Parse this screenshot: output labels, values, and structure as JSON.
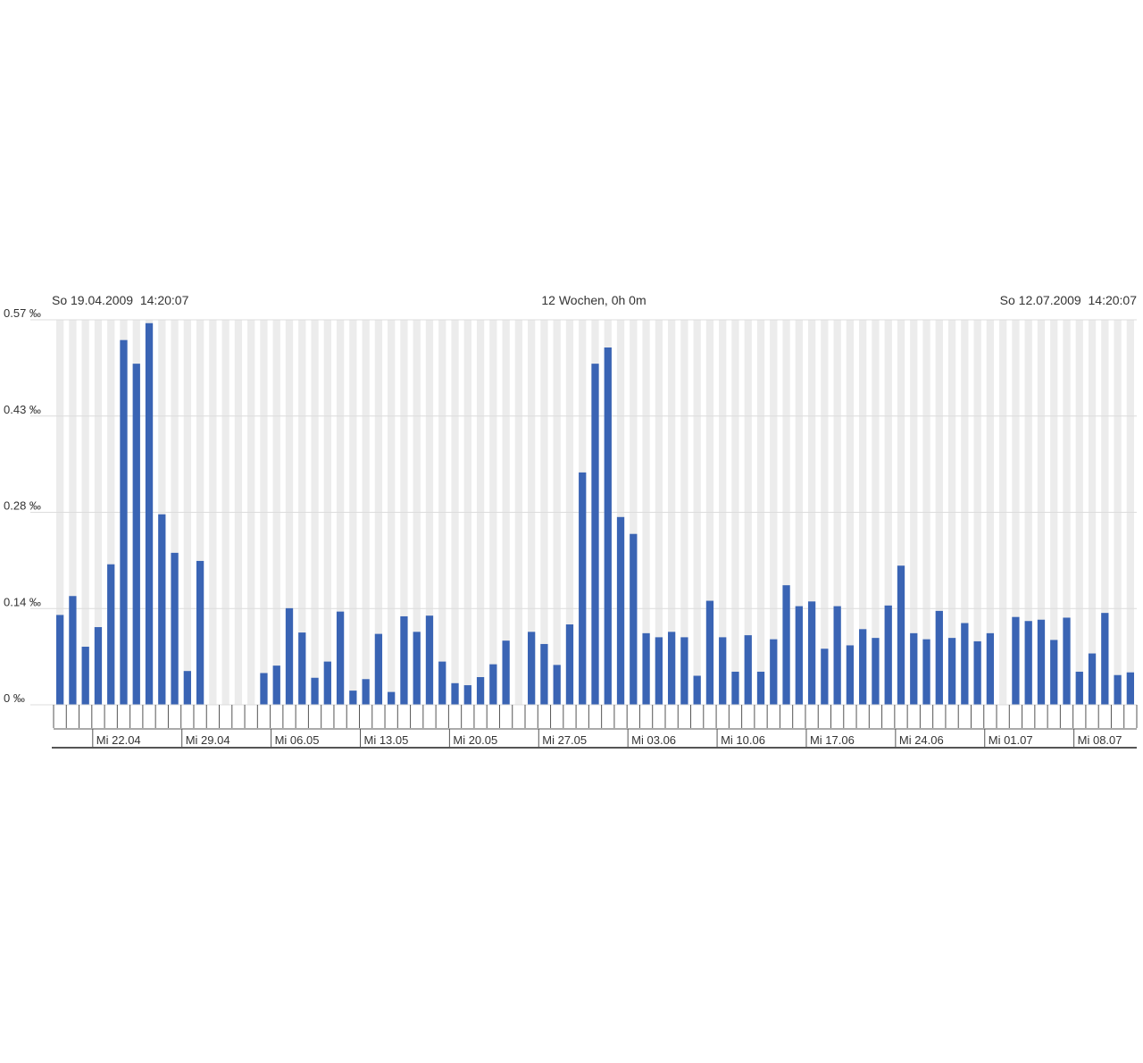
{
  "header": {
    "start": "So 19.04.2009  14:20:07",
    "range": "12 Wochen, 0h 0m",
    "end": "So 12.07.2009  14:20:07"
  },
  "colors": {
    "bar": "#3a64b4",
    "stripe": "#ececec",
    "gridline": "#dcdcdc",
    "axis": "#555555",
    "text": "#333333"
  },
  "chart_data": {
    "type": "bar",
    "y_unit": "‰",
    "ylim": [
      0,
      0.57
    ],
    "y_ticks": [
      {
        "value": 0,
        "label": "0 ‰"
      },
      {
        "value": 0.1425,
        "label": "0.14 ‰"
      },
      {
        "value": 0.285,
        "label": "0.28 ‰"
      },
      {
        "value": 0.4275,
        "label": "0.43 ‰"
      },
      {
        "value": 0.57,
        "label": "0.57 ‰"
      }
    ],
    "x_start": "2009-04-19",
    "x_end": "2009-07-12",
    "x_ticks": [
      {
        "date": "2009-04-22",
        "label": "Mi 22.04"
      },
      {
        "date": "2009-04-29",
        "label": "Mi 29.04"
      },
      {
        "date": "2009-05-06",
        "label": "Mi 06.05"
      },
      {
        "date": "2009-05-13",
        "label": "Mi 13.05"
      },
      {
        "date": "2009-05-20",
        "label": "Mi 20.05"
      },
      {
        "date": "2009-05-27",
        "label": "Mi 27.05"
      },
      {
        "date": "2009-06-03",
        "label": "Mi 03.06"
      },
      {
        "date": "2009-06-10",
        "label": "Mi 10.06"
      },
      {
        "date": "2009-06-17",
        "label": "Mi 17.06"
      },
      {
        "date": "2009-06-24",
        "label": "Mi 24.06"
      },
      {
        "date": "2009-07-01",
        "label": "Mi 01.07"
      },
      {
        "date": "2009-07-08",
        "label": "Mi 08.07"
      }
    ],
    "series": [
      {
        "x": [
          "2009-04-19",
          "2009-04-20",
          "2009-04-21",
          "2009-04-22",
          "2009-04-23",
          "2009-04-24",
          "2009-04-25",
          "2009-04-26",
          "2009-04-27",
          "2009-04-28",
          "2009-04-29",
          "2009-04-30",
          "2009-05-01",
          "2009-05-02",
          "2009-05-03",
          "2009-05-04",
          "2009-05-05",
          "2009-05-06",
          "2009-05-07",
          "2009-05-08",
          "2009-05-09",
          "2009-05-10",
          "2009-05-11",
          "2009-05-12",
          "2009-05-13",
          "2009-05-14",
          "2009-05-15",
          "2009-05-16",
          "2009-05-17",
          "2009-05-18",
          "2009-05-19",
          "2009-05-20",
          "2009-05-21",
          "2009-05-22",
          "2009-05-23",
          "2009-05-24",
          "2009-05-25",
          "2009-05-26",
          "2009-05-27",
          "2009-05-28",
          "2009-05-29",
          "2009-05-30",
          "2009-05-31",
          "2009-06-01",
          "2009-06-02",
          "2009-06-03",
          "2009-06-04",
          "2009-06-05",
          "2009-06-06",
          "2009-06-07",
          "2009-06-08",
          "2009-06-09",
          "2009-06-10",
          "2009-06-11",
          "2009-06-12",
          "2009-06-13",
          "2009-06-14",
          "2009-06-15",
          "2009-06-16",
          "2009-06-17",
          "2009-06-18",
          "2009-06-19",
          "2009-06-20",
          "2009-06-21",
          "2009-06-22",
          "2009-06-23",
          "2009-06-24",
          "2009-06-25",
          "2009-06-26",
          "2009-06-27",
          "2009-06-28",
          "2009-06-29",
          "2009-06-30",
          "2009-07-01",
          "2009-07-02",
          "2009-07-03",
          "2009-07-04",
          "2009-07-05",
          "2009-07-06",
          "2009-07-07",
          "2009-07-08",
          "2009-07-09",
          "2009-07-10",
          "2009-07-11",
          "2009-07-12"
        ],
        "values": [
          0.133,
          0.161,
          0.086,
          0.115,
          0.208,
          0.54,
          0.505,
          0.565,
          0.282,
          0.225,
          0.05,
          0.213,
          0,
          0,
          0,
          0,
          0.047,
          0.058,
          0.143,
          0.107,
          0.04,
          0.064,
          0.138,
          0.021,
          0.038,
          0.105,
          0.019,
          0.131,
          0.108,
          0.132,
          0.064,
          0.032,
          0.029,
          0.041,
          0.06,
          0.095,
          0,
          0.108,
          0.09,
          0.059,
          0.119,
          0.344,
          0.505,
          0.529,
          0.278,
          0.253,
          0.106,
          0.1,
          0.108,
          0.1,
          0.043,
          0.154,
          0.1,
          0.049,
          0.103,
          0.049,
          0.097,
          0.177,
          0.146,
          0.153,
          0.083,
          0.146,
          0.088,
          0.112,
          0.099,
          0.147,
          0.206,
          0.106,
          0.097,
          0.139,
          0.099,
          0.121,
          0.094,
          0.106,
          0,
          0.13,
          0.124,
          0.126,
          0.096,
          0.129,
          0.049,
          0.076,
          0.136,
          0.044,
          0.048
        ]
      }
    ]
  }
}
